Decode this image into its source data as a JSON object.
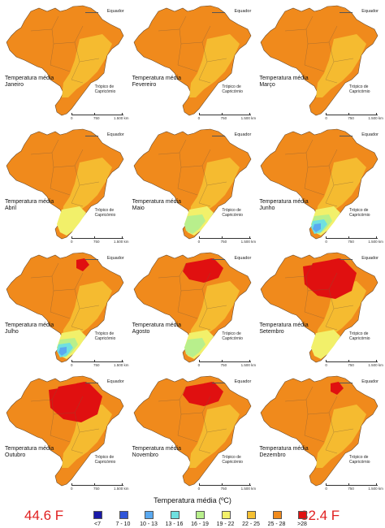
{
  "panel_common": {
    "equator_label": "Equador",
    "tropic_label": "Trópico de Capricórnio",
    "scale_labels": [
      "0",
      "750",
      "1.500 km"
    ]
  },
  "panels": [
    {
      "title_line1": "Temperatura média",
      "title_line2": "Janeiro"
    },
    {
      "title_line1": "Temperatura média",
      "title_line2": "Fevereiro"
    },
    {
      "title_line1": "Temperatura média",
      "title_line2": "Março"
    },
    {
      "title_line1": "Temperatura média",
      "title_line2": "Abril"
    },
    {
      "title_line1": "Temperatura média",
      "title_line2": "Maio"
    },
    {
      "title_line1": "Temperatura média",
      "title_line2": "Junho"
    },
    {
      "title_line1": "Temperatura média",
      "title_line2": "Julho"
    },
    {
      "title_line1": "Temperatura média",
      "title_line2": "Agosto"
    },
    {
      "title_line1": "Temperatura média",
      "title_line2": "Setembro"
    },
    {
      "title_line1": "Temperatura média",
      "title_line2": "Outubro"
    },
    {
      "title_line1": "Temperatura média",
      "title_line2": "Novembro"
    },
    {
      "title_line1": "Temperatura média",
      "title_line2": "Dezembro"
    }
  ],
  "legend": {
    "title": "Temperatura média (ºC)",
    "low_note": "44.6 F",
    "high_note": "82.4 F",
    "classes": [
      {
        "label": "<7",
        "color": "#1a1aa8"
      },
      {
        "label": "7 - 10",
        "color": "#2f55d8"
      },
      {
        "label": "10 - 13",
        "color": "#5aa9f0"
      },
      {
        "label": "13 - 16",
        "color": "#6fe0e0"
      },
      {
        "label": "16 - 19",
        "color": "#b8ef8c"
      },
      {
        "label": "19 - 22",
        "color": "#f2f06a"
      },
      {
        "label": "22 - 25",
        "color": "#f5c033"
      },
      {
        "label": "25 - 28",
        "color": "#f08a1c"
      },
      {
        "label": ">28",
        "color": "#e01010"
      }
    ]
  }
}
